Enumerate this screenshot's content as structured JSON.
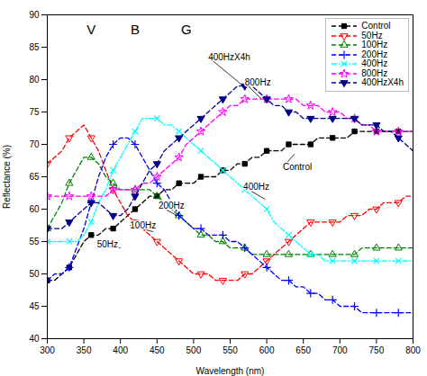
{
  "chart_data": {
    "type": "line",
    "xlabel": "Wavelength (nm)",
    "ylabel": "Reflectance (%)",
    "xlim": [
      300,
      800
    ],
    "ylim": [
      40,
      90
    ],
    "xticks": [
      300,
      350,
      400,
      450,
      500,
      550,
      600,
      650,
      700,
      750,
      800
    ],
    "yticks": [
      40,
      45,
      50,
      55,
      60,
      65,
      70,
      75,
      80,
      85,
      90
    ],
    "grid": false,
    "legend": "upper right",
    "x": [
      300,
      310,
      320,
      330,
      340,
      350,
      360,
      370,
      380,
      390,
      400,
      410,
      420,
      430,
      440,
      450,
      460,
      470,
      480,
      490,
      500,
      510,
      520,
      530,
      540,
      550,
      560,
      570,
      580,
      590,
      600,
      610,
      620,
      630,
      640,
      650,
      660,
      670,
      680,
      690,
      700,
      710,
      720,
      730,
      740,
      750,
      760,
      770,
      780,
      790,
      800
    ],
    "series": [
      {
        "name": "Control",
        "color": "black",
        "marker": "square",
        "line_style": "dashed",
        "values": [
          49,
          49,
          50,
          51,
          53,
          55,
          56,
          56,
          57,
          57,
          58,
          59,
          60,
          61,
          62,
          62,
          63,
          63,
          64,
          64,
          64,
          65,
          65,
          65,
          66,
          66,
          67,
          67,
          68,
          68,
          69,
          69,
          69,
          70,
          70,
          70,
          70,
          71,
          71,
          71,
          71,
          71,
          72,
          72,
          72,
          72,
          72,
          72,
          72,
          72,
          72
        ]
      },
      {
        "name": "50Hz",
        "color": "red",
        "marker": "triangle-down-open",
        "line_style": "dashed",
        "values": [
          67,
          68,
          69,
          71,
          72,
          73,
          71,
          69,
          66,
          63,
          61,
          59,
          58,
          57,
          56,
          55,
          54,
          53,
          52,
          51,
          50,
          50,
          50,
          49,
          49,
          49,
          49,
          50,
          50,
          51,
          52,
          53,
          54,
          55,
          56,
          57,
          58,
          58,
          58,
          58,
          58,
          59,
          59,
          59,
          60,
          60,
          61,
          61,
          61,
          62,
          62
        ]
      },
      {
        "name": "100Hz",
        "color": "green",
        "marker": "triangle-up-open",
        "line_style": "dashed",
        "values": [
          57,
          59,
          61,
          64,
          66,
          68,
          68,
          67,
          65,
          64,
          63,
          63,
          63,
          63,
          63,
          62,
          61,
          60,
          59,
          58,
          57,
          56,
          56,
          55,
          55,
          54,
          54,
          54,
          53,
          53,
          53,
          53,
          53,
          53,
          53,
          53,
          53,
          53,
          53,
          53,
          53,
          53,
          53,
          54,
          54,
          54,
          54,
          54,
          54,
          54,
          54
        ]
      },
      {
        "name": "200Hz",
        "color": "blue",
        "marker": "plus",
        "line_style": "dashed",
        "values": [
          49,
          50,
          50,
          51,
          54,
          57,
          61,
          65,
          68,
          70,
          71,
          71,
          70,
          68,
          66,
          64,
          63,
          61,
          59,
          58,
          57,
          57,
          56,
          56,
          56,
          55,
          55,
          54,
          53,
          52,
          51,
          50,
          49,
          49,
          48,
          48,
          47,
          47,
          46,
          46,
          45,
          45,
          45,
          44,
          44,
          44,
          44,
          44,
          44,
          44,
          44
        ]
      },
      {
        "name": "400Hz",
        "color": "cyan",
        "marker": "x",
        "line_style": "dashdot",
        "values": [
          55,
          55,
          55,
          55,
          55,
          56,
          58,
          61,
          63,
          66,
          68,
          70,
          72,
          74,
          74,
          74,
          73,
          73,
          72,
          71,
          70,
          69,
          68,
          67,
          66,
          65,
          64,
          63,
          62,
          61,
          60,
          58,
          57,
          56,
          55,
          54,
          53,
          53,
          52,
          52,
          52,
          52,
          52,
          52,
          52,
          52,
          52,
          52,
          52,
          52,
          52
        ]
      },
      {
        "name": "800Hz",
        "color": "#ff00ff",
        "marker": "star-open",
        "line_style": "dashed",
        "values": [
          62,
          62,
          62,
          62,
          62,
          62,
          62,
          62,
          62,
          63,
          63,
          63,
          63,
          64,
          64,
          65,
          66,
          67,
          68,
          70,
          71,
          72,
          73,
          74,
          75,
          76,
          76,
          77,
          77,
          77,
          77,
          77,
          77,
          77,
          77,
          76,
          76,
          76,
          75,
          75,
          75,
          74,
          74,
          73,
          73,
          72,
          72,
          72,
          72,
          72,
          72
        ]
      },
      {
        "name": "400HzX4h",
        "color": "#00008B",
        "marker": "triangle-down",
        "line_style": "dashed",
        "values": [
          57,
          57,
          57,
          58,
          59,
          60,
          61,
          61,
          60,
          59,
          59,
          60,
          62,
          64,
          66,
          67,
          69,
          70,
          71,
          72,
          73,
          74,
          75,
          76,
          77,
          78,
          79,
          79,
          79,
          78,
          77,
          76,
          76,
          75,
          75,
          74,
          74,
          74,
          74,
          74,
          74,
          74,
          74,
          73,
          73,
          73,
          72,
          72,
          71,
          70,
          69
        ]
      }
    ],
    "labels": [
      {
        "text": "V",
        "x": 360,
        "y": 88.5
      },
      {
        "text": "B",
        "x": 420,
        "y": 88.5
      },
      {
        "text": "G",
        "x": 490,
        "y": 88.5
      }
    ],
    "annotations": [
      {
        "text": "400HzX4h",
        "xy": [
          568,
          79.0
        ],
        "xytext": [
          520,
          83.5
        ]
      },
      {
        "text": "800Hz",
        "xy": [
          593,
          77.0
        ],
        "xytext": [
          570,
          79.5
        ]
      },
      {
        "text": "Control",
        "xy": [
          638,
          68.5
        ],
        "xytext": [
          622,
          66.5
        ]
      },
      {
        "text": "400Hz",
        "xy": [
          598,
          61.5
        ],
        "xytext": [
          568,
          63.5
        ]
      },
      {
        "text": "200Hz",
        "xy": [
          478,
          59.0
        ],
        "xytext": [
          452,
          60.5
        ]
      },
      {
        "text": "100Hz",
        "xy": [
          445,
          56.5
        ],
        "xytext": [
          413,
          57.5
        ]
      },
      {
        "text": "50Hz",
        "xy": [
          400,
          54.0
        ],
        "xytext": [
          368,
          54.5
        ]
      }
    ]
  }
}
